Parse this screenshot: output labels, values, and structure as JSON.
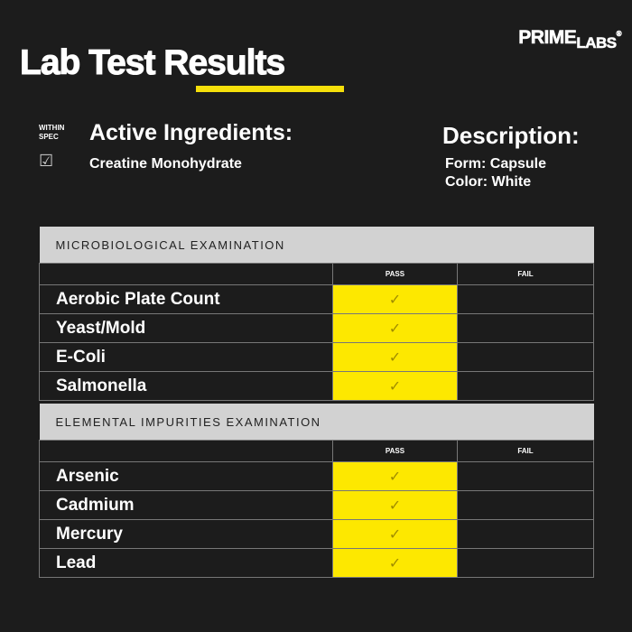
{
  "title": "Lab Test Results",
  "logo": {
    "part1": "PRIME",
    "part2": "LABS",
    "mark": "®"
  },
  "within_spec": {
    "line1": "WITHIN",
    "line2": "SPEC",
    "icon": "checkbox-checked-icon"
  },
  "active_ingredients": {
    "heading": "Active Ingredients:",
    "value": "Creatine Monohydrate"
  },
  "description": {
    "heading": "Description:",
    "form": "Form: Capsule",
    "color": "Color: White"
  },
  "colors": {
    "background": "#1c1c1c",
    "accent": "#fde800",
    "section_header": "#d2d2d2"
  },
  "sections": [
    {
      "title": "MICROBIOLOGICAL EXAMINATION",
      "pass_label": "PASS",
      "fail_label": "FAIL",
      "rows": [
        {
          "name": "Aerobic Plate Count",
          "result": "pass"
        },
        {
          "name": "Yeast/Mold",
          "result": "pass"
        },
        {
          "name": "E-Coli",
          "result": "pass"
        },
        {
          "name": "Salmonella",
          "result": "pass"
        }
      ]
    },
    {
      "title": "ELEMENTAL IMPURITIES EXAMINATION",
      "pass_label": "PASS",
      "fail_label": "FAIL",
      "rows": [
        {
          "name": "Arsenic",
          "result": "pass"
        },
        {
          "name": "Cadmium",
          "result": "pass"
        },
        {
          "name": "Mercury",
          "result": "pass"
        },
        {
          "name": "Lead",
          "result": "pass"
        }
      ]
    }
  ]
}
